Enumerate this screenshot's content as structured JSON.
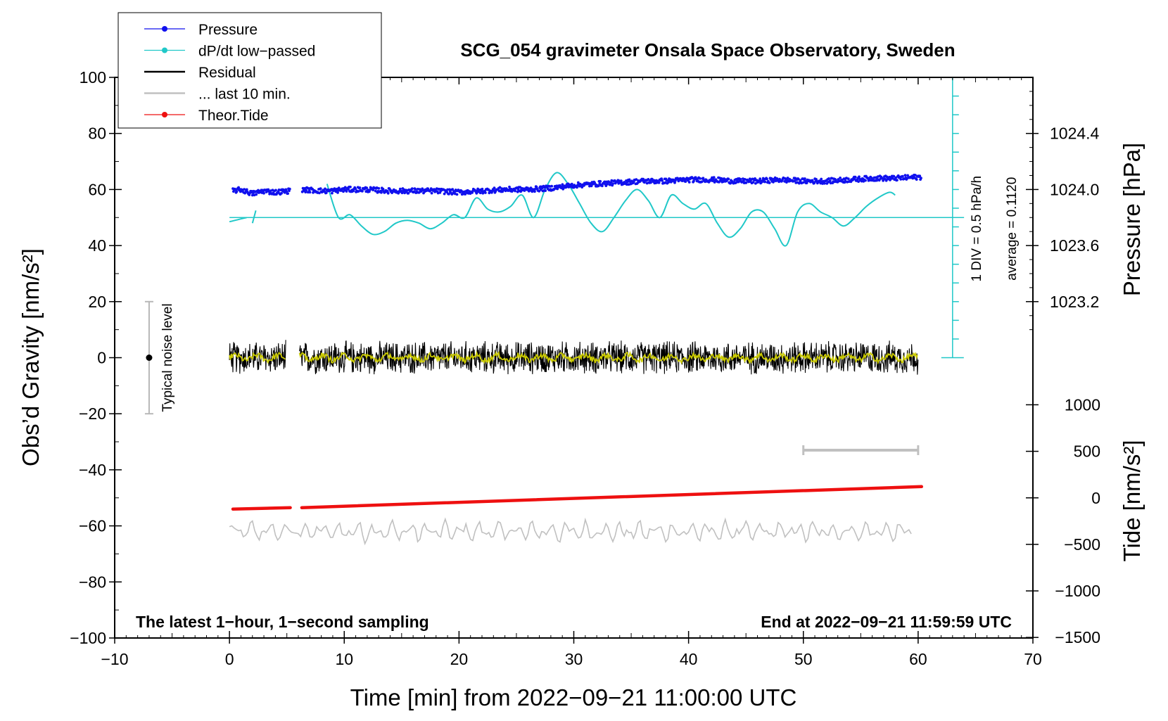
{
  "chart_data": {
    "type": "line",
    "title": "SCG_054 gravimeter Onsala Space Observatory, Sweden",
    "xlabel": "Time [min] from 2022−09−21 11:00:00 UTC",
    "ylabel_left": "Obs’d Gravity [nm/s²]",
    "ylabel_right_pressure": "Pressure [hPa]",
    "ylabel_right_tide": "Tide [nm/s²]",
    "xlim": [
      -10,
      70
    ],
    "ylim": [
      -100,
      100
    ],
    "x_ticks": [
      "−10",
      "0",
      "10",
      "20",
      "30",
      "40",
      "50",
      "60",
      "70"
    ],
    "y_ticks": [
      "−100",
      "−80",
      "−60",
      "−40",
      "−20",
      "0",
      "20",
      "40",
      "60",
      "80",
      "100"
    ],
    "pressure_ticks": [
      "1023.2",
      "1023.6",
      "1024.0",
      "1024.4"
    ],
    "pressure_tick_values": [
      1023.2,
      1023.6,
      1024.0,
      1024.4
    ],
    "tide_ticks": [
      "−1500",
      "−1000",
      "−500",
      "0",
      "500",
      "1000"
    ],
    "tide_tick_values": [
      -1500,
      -1000,
      -500,
      0,
      500,
      1000
    ],
    "legend": [
      {
        "label": "Pressure",
        "color": "#1010ee",
        "marker": true
      },
      {
        "label": "dP/dt low−passed",
        "color": "#20c8c8",
        "marker": true
      },
      {
        "label": "Residual",
        "color": "#000000",
        "marker": false
      },
      {
        "label": "... last 10 min.",
        "color": "#c0c0c0",
        "marker": false
      },
      {
        "label": "Theor.Tide",
        "color": "#ee1010",
        "marker": true
      }
    ],
    "annotations": {
      "bottom_left": "The latest 1−hour, 1−second sampling",
      "bottom_right": "End at 2022−09−21 11:59:59 UTC",
      "noise_label": "Typical noise level",
      "scale_label": "1 DIV = 0.5 hPa/h",
      "average_label": "average = 0.1120"
    },
    "noise_bar": {
      "x": -7,
      "y": 0,
      "low": -20,
      "high": 20
    },
    "scale_bar": {
      "x": 63,
      "y_bottom": 0,
      "y_top": 100,
      "divisions": 15
    },
    "dpdt_reference_y": 50,
    "last10_bar": {
      "x_start": 50,
      "x_end": 60,
      "y": -33
    },
    "pressure": {
      "x": [
        0.3,
        1,
        2,
        3,
        4,
        5.2,
        6.3,
        8,
        9,
        10,
        12,
        14,
        16,
        18,
        20,
        22,
        24,
        26,
        28,
        30,
        32,
        34,
        36,
        38,
        40,
        42,
        44,
        46,
        48,
        50,
        52,
        54,
        56,
        58,
        60.3
      ],
      "y": [
        59.5,
        60,
        58.5,
        59.5,
        59,
        59.5,
        60,
        59.5,
        59.5,
        60,
        60,
        59.5,
        59.5,
        59.5,
        59,
        59.5,
        60,
        60,
        60.5,
        61.5,
        62,
        62.5,
        63,
        63,
        63.5,
        63.5,
        63,
        63,
        63.5,
        63,
        63,
        63.5,
        64,
        64,
        64.5
      ]
    },
    "dpdt_segments": [
      {
        "x": [
          0,
          0.5,
          1.0,
          1.5
        ],
        "y": [
          48.5,
          49.0,
          49.5,
          50.0
        ]
      },
      {
        "x": [
          2.0,
          2.3
        ],
        "y": [
          48,
          52.5
        ]
      },
      {
        "x": [
          8.5,
          9.5,
          10.5,
          11.5,
          12.5,
          13.5,
          14.5,
          15.5,
          16.5,
          17.5,
          18.5,
          19.5,
          20.5,
          21.5,
          22.5,
          23.5,
          24.5,
          25.5,
          26.5,
          27.5,
          28.5,
          29.5,
          30.5,
          31.5,
          32.5,
          33.5,
          34.5,
          35.5,
          36.5,
          37.5,
          38.5,
          39.5,
          40.5,
          41.5,
          42.5,
          43.5,
          44.5,
          45.5,
          46.5,
          47.5,
          48.5,
          49.5,
          50.5,
          51.5,
          52.5,
          53.5,
          54.5,
          55.5,
          56.5,
          57.5,
          58.0
        ],
        "y": [
          62,
          50,
          51,
          47,
          44,
          45,
          48,
          49,
          48,
          46,
          48,
          51,
          50,
          57,
          53,
          52,
          54,
          58,
          50,
          60,
          66,
          62,
          55,
          48,
          45,
          50,
          56,
          60,
          56,
          50,
          58,
          55,
          53,
          55,
          48,
          43,
          46,
          52,
          52,
          46,
          40,
          52,
          55,
          52,
          50,
          47,
          50,
          54,
          57,
          59,
          58
        ]
      }
    ],
    "residual": {
      "center": 0,
      "amplitude": 6,
      "segments": [
        [
          0,
          4.9
        ],
        [
          6.1,
          60
        ]
      ]
    },
    "residual_smooth": {
      "color": "#cccc00",
      "amplitude": 2
    },
    "last10": {
      "center": -62,
      "amplitude": 4,
      "x_range": [
        0,
        59.5
      ]
    },
    "tide_segments": [
      {
        "x": [
          0.3,
          5.3
        ],
        "y": [
          -54,
          -53.5
        ]
      },
      {
        "x": [
          6.3,
          60.3
        ],
        "y": [
          -53.5,
          -46
        ]
      }
    ]
  }
}
